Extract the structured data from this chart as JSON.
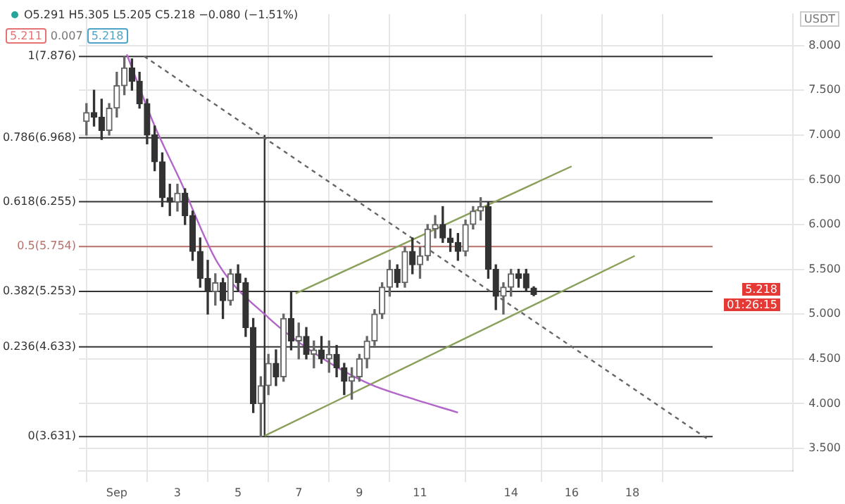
{
  "chart_data": {
    "type": "candlestick",
    "colors": [
      "#666666",
      "#333333",
      "#333333",
      "#666666",
      "#666666",
      "#666666",
      "#333333",
      "#333333",
      "#333333",
      "#333333",
      "#333333",
      "#333333",
      "#666666",
      "#333333",
      "#333333",
      "#333333",
      "#333333",
      "#666666",
      "#333333",
      "#666666",
      "#333333",
      "#333333",
      "#333333",
      "#666666",
      "#666666",
      "#333333",
      "#666666",
      "#333333",
      "#666666",
      "#333333",
      "#666666",
      "#333333",
      "#666666",
      "#333333",
      "#333333",
      "#666666",
      "#666666",
      "#666666",
      "#666666",
      "#666666",
      "#666666",
      "#333333",
      "#666666",
      "#333333",
      "#666666",
      "#666666",
      "#666666",
      "#333333",
      "#333333",
      "#333333",
      "#666666",
      "#666666",
      "#666666",
      "#333333",
      "#333333",
      "#666666",
      "#666666",
      "#333333",
      "#333333",
      "#333333"
    ],
    "x": [
      0,
      0.25,
      0.5,
      0.75,
      1,
      1.25,
      1.5,
      1.75,
      2,
      2.25,
      2.5,
      2.75,
      3,
      3.25,
      3.5,
      3.75,
      4,
      4.25,
      4.5,
      4.75,
      5,
      5.25,
      5.5,
      5.75,
      6,
      6.25,
      6.5,
      6.75,
      7,
      7.25,
      7.5,
      7.75,
      8,
      8.25,
      8.5,
      8.75,
      9,
      9.25,
      9.5,
      9.75,
      10,
      10.25,
      10.5,
      10.75,
      11,
      11.25,
      11.5,
      11.75,
      12,
      12.25,
      12.5,
      12.75,
      13,
      13.25,
      13.5,
      13.75,
      14,
      14.25,
      14.5,
      14.75
    ],
    "ohlc": [
      [
        7.15,
        7.35,
        7.0,
        7.25
      ],
      [
        7.25,
        7.5,
        7.1,
        7.2
      ],
      [
        7.2,
        7.4,
        6.95,
        7.05
      ],
      [
        7.05,
        7.35,
        7.0,
        7.3
      ],
      [
        7.3,
        7.7,
        7.2,
        7.55
      ],
      [
        7.55,
        7.876,
        7.45,
        7.75
      ],
      [
        7.75,
        7.85,
        7.5,
        7.6
      ],
      [
        7.6,
        7.7,
        7.3,
        7.35
      ],
      [
        7.35,
        7.4,
        6.9,
        7.0
      ],
      [
        7.0,
        7.1,
        6.6,
        6.7
      ],
      [
        6.7,
        6.8,
        6.2,
        6.3
      ],
      [
        6.3,
        6.45,
        6.1,
        6.25
      ],
      [
        6.25,
        6.45,
        6.15,
        6.35
      ],
      [
        6.35,
        6.4,
        6.0,
        6.1
      ],
      [
        6.1,
        6.15,
        5.6,
        5.7
      ],
      [
        5.7,
        5.85,
        5.3,
        5.4
      ],
      [
        5.4,
        5.6,
        5.0,
        5.25
      ],
      [
        5.25,
        5.45,
        5.1,
        5.35
      ],
      [
        5.35,
        5.4,
        4.95,
        5.15
      ],
      [
        5.15,
        5.5,
        5.1,
        5.45
      ],
      [
        5.45,
        5.55,
        5.25,
        5.35
      ],
      [
        5.35,
        5.4,
        4.75,
        4.85
      ],
      [
        4.85,
        4.95,
        3.9,
        4.0
      ],
      [
        4.0,
        4.3,
        3.631,
        4.2
      ],
      [
        4.2,
        4.55,
        4.1,
        4.45
      ],
      [
        4.45,
        4.6,
        4.2,
        4.3
      ],
      [
        4.3,
        5.0,
        4.25,
        4.95
      ],
      [
        4.95,
        5.25,
        4.6,
        4.7
      ],
      [
        4.7,
        4.9,
        4.5,
        4.75
      ],
      [
        4.75,
        4.85,
        4.5,
        4.55
      ],
      [
        4.55,
        4.7,
        4.4,
        4.6
      ],
      [
        4.6,
        4.75,
        4.45,
        4.5
      ],
      [
        4.5,
        4.7,
        4.35,
        4.55
      ],
      [
        4.55,
        4.65,
        4.3,
        4.4
      ],
      [
        4.4,
        4.45,
        4.1,
        4.25
      ],
      [
        4.25,
        4.4,
        4.05,
        4.3
      ],
      [
        4.3,
        4.55,
        4.25,
        4.5
      ],
      [
        4.5,
        4.75,
        4.4,
        4.7
      ],
      [
        4.7,
        5.05,
        4.65,
        5.0
      ],
      [
        5.0,
        5.35,
        4.95,
        5.3
      ],
      [
        5.3,
        5.6,
        5.2,
        5.5
      ],
      [
        5.5,
        5.55,
        5.3,
        5.35
      ],
      [
        5.35,
        5.75,
        5.3,
        5.7
      ],
      [
        5.7,
        5.85,
        5.45,
        5.55
      ],
      [
        5.55,
        5.75,
        5.4,
        5.65
      ],
      [
        5.65,
        6.0,
        5.6,
        5.95
      ],
      [
        5.95,
        6.1,
        5.85,
        6.0
      ],
      [
        6.0,
        6.2,
        5.8,
        5.85
      ],
      [
        5.85,
        5.95,
        5.7,
        5.8
      ],
      [
        5.8,
        5.9,
        5.6,
        5.7
      ],
      [
        5.7,
        6.05,
        5.65,
        6.0
      ],
      [
        6.0,
        6.2,
        5.95,
        6.15
      ],
      [
        6.15,
        6.3,
        6.05,
        6.2
      ],
      [
        6.2,
        6.25,
        5.4,
        5.5
      ],
      [
        5.5,
        5.55,
        5.05,
        5.2
      ],
      [
        5.2,
        5.35,
        5.0,
        5.3
      ],
      [
        5.3,
        5.5,
        5.2,
        5.45
      ],
      [
        5.45,
        5.5,
        5.3,
        5.4
      ],
      [
        5.45,
        5.5,
        5.25,
        5.291
      ],
      [
        5.291,
        5.305,
        5.205,
        5.218
      ]
    ],
    "series": [
      {
        "type": "line",
        "color": "#b366c9",
        "x": [
          1.33,
          2.25,
          3.08,
          4.33,
          6,
          7.67,
          9.33,
          10.6,
          12.25
        ],
        "values": [
          7.9,
          7.1,
          6.5,
          5.57,
          4.96,
          4.53,
          4.22,
          4.07,
          3.9
        ]
      },
      {
        "type": "line",
        "color": "#666666",
        "line_style": "dashed",
        "x": [
          1.9,
          20.46
        ],
        "values": [
          7.88,
          3.61
        ]
      },
      {
        "type": "line",
        "color": "#8aa05a",
        "x": [
          5.875,
          18.08
        ],
        "values": [
          3.64,
          5.65
        ]
      },
      {
        "type": "line",
        "color": "#8aa05a",
        "x": [
          6.9,
          16.0
        ],
        "values": [
          5.23,
          6.65
        ]
      },
      {
        "type": "line",
        "color": "#333333",
        "x": [
          5.875,
          5.875
        ],
        "values": [
          3.63,
          7.0
        ]
      }
    ],
    "ref_lines": [
      {
        "axis": "y",
        "value": 7.876,
        "label": "1(7.876)",
        "color": "#333333"
      },
      {
        "axis": "y",
        "value": 6.968,
        "label": "0.786(6.968)",
        "color": "#333333"
      },
      {
        "axis": "y",
        "value": 6.255,
        "label": "0.618(6.255)",
        "color": "#333333"
      },
      {
        "axis": "y",
        "value": 5.754,
        "label": "0.5(5.754)",
        "color": "#b5706a"
      },
      {
        "axis": "y",
        "value": 5.253,
        "label": "0.382(5.253)",
        "color": "#333333"
      },
      {
        "axis": "y",
        "value": 4.633,
        "label": "0.236(4.633)",
        "color": "#333333"
      },
      {
        "axis": "y",
        "value": 3.631,
        "label": "0(3.631)",
        "color": "#333333"
      }
    ],
    "annotations": [
      "O5.291 H5.305 L5.205 C5.218 −0.080 (−1.51%)",
      "5.211",
      "0.007",
      "5.218",
      "USDT",
      "5.218",
      "01:26:15"
    ],
    "xlim": [
      -0.25,
      23.3
    ],
    "xticks": [
      {
        "value": 1,
        "label": "Sep"
      },
      3,
      5,
      7,
      9,
      11,
      14,
      16,
      18
    ],
    "ylim": [
      3.25,
      8.35
    ],
    "yticks": [
      {
        "value": 3.5,
        "label": "3.500"
      },
      {
        "value": 4,
        "label": "4.000"
      },
      {
        "value": 4.5,
        "label": "4.500"
      },
      {
        "value": 5,
        "label": "5.000"
      },
      {
        "value": 5.5,
        "label": "5.500"
      },
      {
        "value": 6,
        "label": "6.000"
      },
      {
        "value": 6.5,
        "label": "6.500"
      },
      {
        "value": 7,
        "label": "7.000"
      },
      {
        "value": 7.5,
        "label": "7.500"
      },
      {
        "value": 8,
        "label": "8.000"
      }
    ],
    "grid": true,
    "legend": false,
    "marker": "none"
  }
}
